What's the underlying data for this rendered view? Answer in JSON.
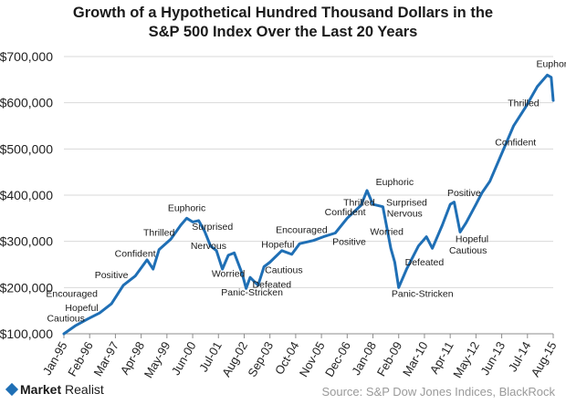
{
  "chart_data": {
    "type": "line",
    "title_line1": "Growth of a Hypothetical Hundred Thousand Dollars in the",
    "title_line2": "S&P 500 Index Over the Last 20 Years",
    "xlabel": "",
    "ylabel": "",
    "ylim": [
      100000,
      700000
    ],
    "y_ticks": [
      "$100,000",
      "$200,000",
      "$300,000",
      "$400,000",
      "$500,000",
      "$600,000",
      "$700,000"
    ],
    "x_ticks": [
      "Jan-95",
      "Feb-96",
      "Mar-97",
      "Apr-98",
      "May-99",
      "Jun-00",
      "Jul-01",
      "Aug-02",
      "Sep-03",
      "Oct-04",
      "Nov-05",
      "Dec-06",
      "Jan-08",
      "Feb-09",
      "Mar-10",
      "Apr-11",
      "May-12",
      "Jun-13",
      "Jul-14",
      "Aug-15"
    ],
    "grid": "horizontal",
    "line_color": "#1f6fb5",
    "series": [
      {
        "points": [
          [
            "Jan-95",
            100000
          ],
          [
            "Jul-95",
            118000
          ],
          [
            "Jan-96",
            132000
          ],
          [
            "Jul-96",
            145000
          ],
          [
            "Jan-97",
            165000
          ],
          [
            "Jul-97",
            205000
          ],
          [
            "Jan-98",
            225000
          ],
          [
            "Jul-98",
            260000
          ],
          [
            "Oct-98",
            240000
          ],
          [
            "Jan-99",
            282000
          ],
          [
            "Jul-99",
            305000
          ],
          [
            "Dec-99",
            335000
          ],
          [
            "Mar-00",
            350000
          ],
          [
            "Jun-00",
            342000
          ],
          [
            "Sep-00",
            345000
          ],
          [
            "Dec-00",
            322000
          ],
          [
            "Mar-01",
            290000
          ],
          [
            "Jun-01",
            280000
          ],
          [
            "Sep-01",
            240000
          ],
          [
            "Dec-01",
            270000
          ],
          [
            "Mar-02",
            275000
          ],
          [
            "Jul-02",
            230000
          ],
          [
            "Sep-02",
            198000
          ],
          [
            "Nov-02",
            222000
          ],
          [
            "Mar-03",
            205000
          ],
          [
            "Jun-03",
            245000
          ],
          [
            "Sep-03",
            255000
          ],
          [
            "Mar-04",
            280000
          ],
          [
            "Aug-04",
            272000
          ],
          [
            "Dec-04",
            295000
          ],
          [
            "Jul-05",
            302000
          ],
          [
            "Dec-05",
            310000
          ],
          [
            "Jun-06",
            318000
          ],
          [
            "Dec-06",
            350000
          ],
          [
            "Jul-07",
            378000
          ],
          [
            "Oct-07",
            410000
          ],
          [
            "Jan-08",
            380000
          ],
          [
            "Jun-08",
            375000
          ],
          [
            "Oct-08",
            285000
          ],
          [
            "Dec-08",
            255000
          ],
          [
            "Feb-09",
            200000
          ],
          [
            "Jun-09",
            240000
          ],
          [
            "Dec-09",
            290000
          ],
          [
            "Apr-10",
            310000
          ],
          [
            "Jul-10",
            285000
          ],
          [
            "Dec-10",
            335000
          ],
          [
            "Apr-11",
            380000
          ],
          [
            "Jun-11",
            385000
          ],
          [
            "Sep-11",
            320000
          ],
          [
            "Dec-11",
            340000
          ],
          [
            "May-12",
            380000
          ],
          [
            "Aug-12",
            405000
          ],
          [
            "Dec-12",
            430000
          ],
          [
            "Jun-13",
            490000
          ],
          [
            "Dec-13",
            550000
          ],
          [
            "Jun-14",
            590000
          ],
          [
            "Dec-14",
            635000
          ],
          [
            "May-15",
            660000
          ],
          [
            "Jul-15",
            655000
          ],
          [
            "Aug-15",
            605000
          ]
        ]
      }
    ],
    "annotations": [
      {
        "text": "Cautious",
        "date": "Feb-95",
        "value": 127000
      },
      {
        "text": "Hopeful",
        "date": "Oct-95",
        "value": 149000
      },
      {
        "text": "Encouraged",
        "date": "May-95",
        "value": 180000
      },
      {
        "text": "Positive",
        "date": "Jan-97",
        "value": 220000
      },
      {
        "text": "Confident",
        "date": "Jan-98",
        "value": 267000
      },
      {
        "text": "Thrilled",
        "date": "Jan-99",
        "value": 312000
      },
      {
        "text": "Euphoric",
        "date": "Mar-00",
        "value": 365000
      },
      {
        "text": "Surprised",
        "date": "Apr-01",
        "value": 325000
      },
      {
        "text": "Nervous",
        "date": "Feb-01",
        "value": 284000
      },
      {
        "text": "Worried",
        "date": "Dec-01",
        "value": 223000
      },
      {
        "text": "Panic-Stricken",
        "date": "Dec-02",
        "value": 183000
      },
      {
        "text": "Defeated",
        "date": "Oct-03",
        "value": 200000
      },
      {
        "text": "Cautious",
        "date": "Apr-04",
        "value": 231000
      },
      {
        "text": "Hopeful",
        "date": "Jan-04",
        "value": 287000
      },
      {
        "text": "Encouraged",
        "date": "Jan-05",
        "value": 318000
      },
      {
        "text": "Positive",
        "date": "Jan-07",
        "value": 292000
      },
      {
        "text": "Confident",
        "date": "Nov-06",
        "value": 357000
      },
      {
        "text": "Thrilled",
        "date": "Jun-07",
        "value": 377000
      },
      {
        "text": "Euphoric",
        "date": "Dec-08",
        "value": 422000
      },
      {
        "text": "Surprised",
        "date": "Jun-09",
        "value": 377000
      },
      {
        "text": "Nervous",
        "date": "May-09",
        "value": 354000
      },
      {
        "text": "Worried",
        "date": "Aug-08",
        "value": 314000
      },
      {
        "text": "Defeated",
        "date": "Mar-10",
        "value": 248000
      },
      {
        "text": "Panic-Stricken",
        "date": "Feb-10",
        "value": 180000
      },
      {
        "text": "Positive",
        "date": "Nov-11",
        "value": 398000
      },
      {
        "text": "Hopeful",
        "date": "Mar-12",
        "value": 298000
      },
      {
        "text": "Cautious",
        "date": "Jan-12",
        "value": 274000
      },
      {
        "text": "Confident",
        "date": "Jan-14",
        "value": 508000
      },
      {
        "text": "Thrilled",
        "date": "May-14",
        "value": 592000
      },
      {
        "text": "Euphoric",
        "date": "Sep-15",
        "value": 677000
      }
    ]
  },
  "footer": {
    "brand_part1": "Market",
    "brand_part2": " Realist",
    "source": "Source: S&P Dow Jones Indices, BlackRock"
  }
}
